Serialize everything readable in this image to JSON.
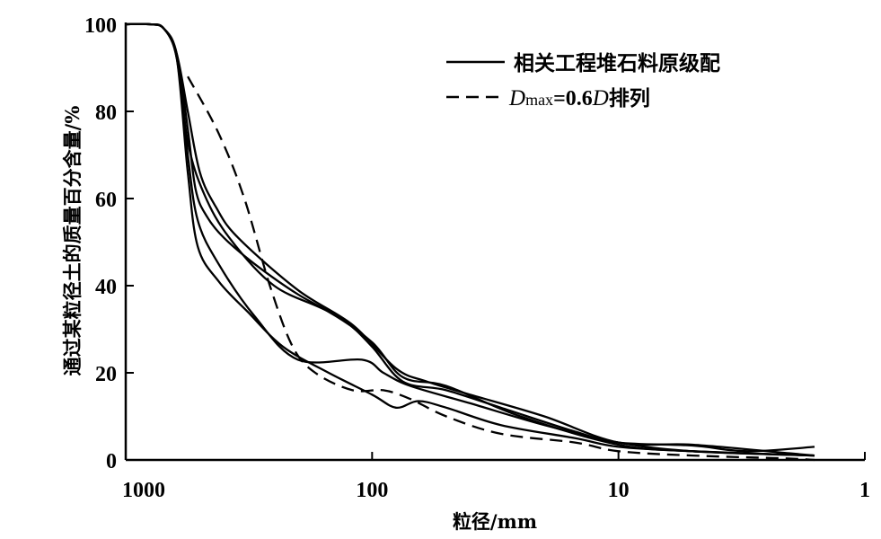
{
  "chart_data": {
    "type": "line",
    "title": "",
    "xlabel": "粒径/mm",
    "ylabel": "通过某粒径土的质量百分含量/%",
    "x_scale": "log",
    "x_reversed": true,
    "xlim": [
      1000,
      1
    ],
    "ylim": [
      0,
      100
    ],
    "x_ticks": [
      1000,
      100,
      10,
      1
    ],
    "x_tick_labels": [
      "1000",
      "100",
      "10",
      "1"
    ],
    "y_ticks": [
      0,
      20,
      40,
      60,
      80,
      100
    ],
    "y_tick_labels": [
      "0",
      "20",
      "40",
      "60",
      "80",
      "100"
    ],
    "grid": false,
    "legend_position": "top-right",
    "legend": [
      {
        "label": "相关工程堆石料原级配",
        "style": "solid"
      },
      {
        "label_parts": [
          "D",
          "max",
          "=0.6",
          "D",
          "排列"
        ],
        "style": "dashed"
      }
    ],
    "series": [
      {
        "name": "相关工程堆石料原级配",
        "style": "solid",
        "points": [
          [
            1000,
            100
          ],
          [
            800,
            100
          ],
          [
            700,
            99
          ],
          [
            620,
            93
          ],
          [
            560,
            76
          ],
          [
            520,
            62
          ],
          [
            470,
            56
          ],
          [
            400,
            51
          ],
          [
            300,
            45
          ],
          [
            200,
            38
          ],
          [
            130,
            32
          ],
          [
            100,
            26
          ],
          [
            75,
            18
          ],
          [
            50,
            16
          ],
          [
            30,
            12
          ],
          [
            15,
            6.5
          ],
          [
            10,
            4
          ],
          [
            5,
            3.3
          ],
          [
            3,
            2
          ],
          [
            1.6,
            3
          ]
        ]
      },
      {
        "name": "相关工程堆石料原级配",
        "style": "solid",
        "points": [
          [
            1000,
            100
          ],
          [
            800,
            100
          ],
          [
            700,
            99
          ],
          [
            620,
            93
          ],
          [
            560,
            80
          ],
          [
            500,
            66
          ],
          [
            430,
            58
          ],
          [
            350,
            51
          ],
          [
            200,
            39
          ],
          [
            120,
            31
          ],
          [
            80,
            21
          ],
          [
            60,
            18
          ],
          [
            40,
            15
          ],
          [
            20,
            10
          ],
          [
            10,
            4
          ],
          [
            5,
            3.5
          ],
          [
            2,
            1.5
          ],
          [
            1.6,
            1
          ]
        ]
      },
      {
        "name": "相关工程堆石料原级配",
        "style": "solid",
        "points": [
          [
            1000,
            100
          ],
          [
            800,
            100
          ],
          [
            700,
            99
          ],
          [
            620,
            92
          ],
          [
            560,
            70
          ],
          [
            510,
            55
          ],
          [
            420,
            45
          ],
          [
            300,
            33
          ],
          [
            200,
            23
          ],
          [
            110,
            23
          ],
          [
            90,
            20
          ],
          [
            70,
            17
          ],
          [
            40,
            13
          ],
          [
            20,
            8
          ],
          [
            10,
            4
          ],
          [
            5,
            2
          ],
          [
            1.6,
            1
          ]
        ]
      },
      {
        "name": "相关工程堆石料原级配",
        "style": "solid",
        "points": [
          [
            1000,
            100
          ],
          [
            800,
            100
          ],
          [
            700,
            99
          ],
          [
            620,
            92
          ],
          [
            560,
            66
          ],
          [
            510,
            49
          ],
          [
            420,
            41
          ],
          [
            320,
            34
          ],
          [
            230,
            26
          ],
          [
            150,
            20
          ],
          [
            100,
            15
          ],
          [
            80,
            12
          ],
          [
            65,
            13.5
          ],
          [
            50,
            12
          ],
          [
            30,
            8
          ],
          [
            15,
            5
          ],
          [
            10,
            3
          ],
          [
            5,
            2
          ],
          [
            1.6,
            1
          ]
        ]
      },
      {
        "name": "相关工程堆石料原级配",
        "style": "solid",
        "points": [
          [
            1000,
            100
          ],
          [
            800,
            100
          ],
          [
            700,
            99
          ],
          [
            620,
            93
          ],
          [
            560,
            73
          ],
          [
            480,
            61
          ],
          [
            380,
            51
          ],
          [
            250,
            40
          ],
          [
            150,
            34
          ],
          [
            100,
            27
          ],
          [
            75,
            19
          ],
          [
            50,
            17
          ],
          [
            25,
            10
          ],
          [
            10,
            3.5
          ],
          [
            5,
            2
          ],
          [
            1.6,
            1
          ]
        ]
      },
      {
        "name": "Dmax=0.6D排列",
        "style": "dashed",
        "points": [
          [
            560,
            88
          ],
          [
            420,
            75
          ],
          [
            330,
            60
          ],
          [
            260,
            40
          ],
          [
            210,
            26
          ],
          [
            170,
            20
          ],
          [
            120,
            16
          ],
          [
            90,
            16
          ],
          [
            70,
            14
          ],
          [
            50,
            10
          ],
          [
            30,
            6
          ],
          [
            15,
            4
          ],
          [
            10,
            2
          ],
          [
            5,
            1
          ],
          [
            2,
            0.3
          ],
          [
            1.6,
            0
          ]
        ]
      }
    ]
  }
}
